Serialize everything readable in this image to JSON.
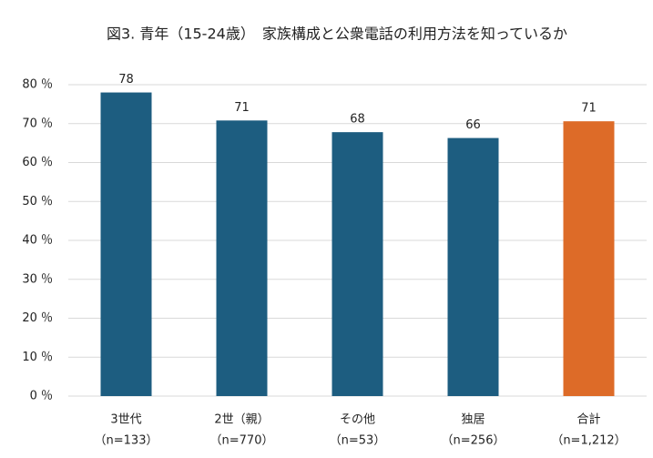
{
  "chart_data": {
    "type": "bar",
    "title": "図3. 青年（15-24歳）　家族構成と公衆電話の利用方法を知っているか",
    "categories": [
      [
        "3世代",
        "（n=133）"
      ],
      [
        "2世（親）",
        "（n=770）"
      ],
      [
        "その他",
        "（n=53）"
      ],
      [
        "独居",
        "（n=256）"
      ],
      [
        "合計",
        "（n=1,212）"
      ]
    ],
    "values": [
      78,
      70.8,
      67.8,
      66.3,
      70.6
    ],
    "value_labels": [
      "78",
      "71",
      "68",
      "66",
      "71"
    ],
    "colors": [
      "#1d5d80",
      "#1d5d80",
      "#1d5d80",
      "#1d5d80",
      "#dd6b28"
    ],
    "ylim": [
      0,
      80
    ],
    "yticks": [
      {
        "value": 0,
        "label": "0 ％"
      },
      {
        "value": 10,
        "label": "10 ％"
      },
      {
        "value": 20,
        "label": "20 ％"
      },
      {
        "value": 30,
        "label": "30 ％"
      },
      {
        "value": 40,
        "label": "40 ％"
      },
      {
        "value": 50,
        "label": "50 ％"
      },
      {
        "value": 60,
        "label": "60 ％"
      },
      {
        "value": 70,
        "label": "70 ％"
      },
      {
        "value": 80,
        "label": "80 ％"
      }
    ],
    "grid": true
  }
}
